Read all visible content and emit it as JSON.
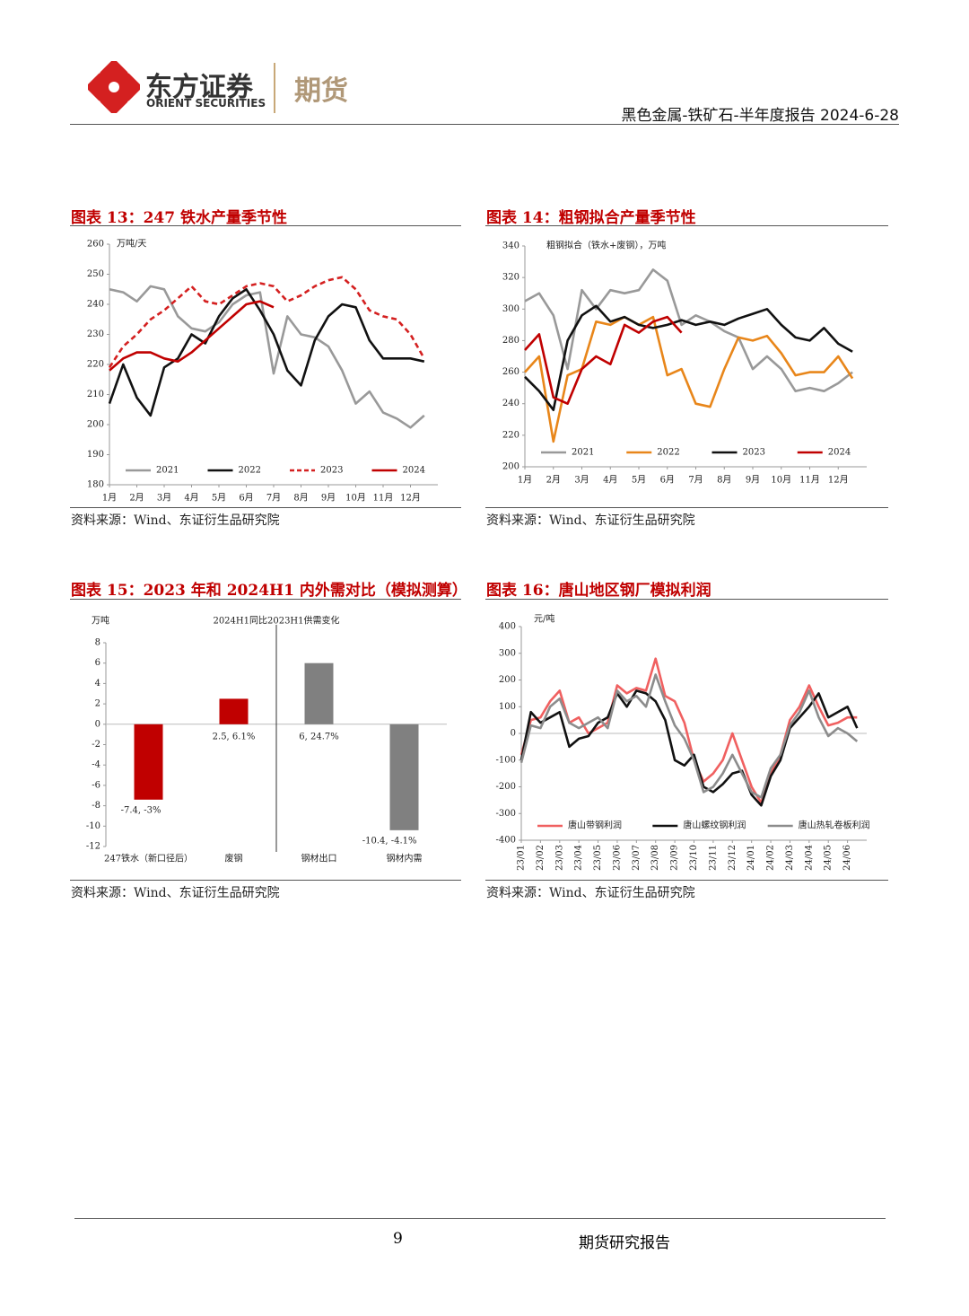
{
  "header": {
    "logo_cn": "东方证券",
    "logo_en": "ORIENT SECURITIES",
    "division": "期货",
    "report": "黑色金属-铁矿石-半年度报告 2024-6-28"
  },
  "footer": {
    "page": "9",
    "name": "期货研究报告"
  },
  "chart_data": [
    {
      "type": "line",
      "figure": "图表 13：247 铁水产量季节性",
      "source": "资料来源：Wind、东证衍生品研究院",
      "y_label": "万吨/天",
      "categories": [
        "1月",
        null,
        "2月",
        null,
        "3月",
        null,
        "4月",
        null,
        "5月",
        null,
        "6月",
        null,
        "7月",
        null,
        "8月",
        null,
        "9月",
        null,
        "10月",
        null,
        "11月",
        null,
        "12月",
        null
      ],
      "ylim": [
        180,
        260
      ],
      "yticks": [
        180,
        190,
        200,
        210,
        220,
        230,
        240,
        250,
        260
      ],
      "legend": "bottom",
      "series": [
        {
          "name": "2021",
          "color": "#999999",
          "values": [
            245,
            244,
            241,
            246,
            245,
            236,
            232,
            231,
            234,
            240,
            243,
            244,
            217,
            236,
            230,
            229,
            226,
            218,
            207,
            211,
            204,
            202,
            199,
            203
          ]
        },
        {
          "name": "2022",
          "color": "#111111",
          "values": [
            207,
            220,
            209,
            203,
            219,
            222,
            230,
            227,
            236,
            242,
            245,
            238,
            230,
            218,
            213,
            228,
            236,
            240,
            239,
            228,
            222,
            222,
            222,
            221
          ]
        },
        {
          "name": "2023",
          "color": "#d42020",
          "dash": true,
          "values": [
            219,
            226,
            230,
            235,
            238,
            242,
            246,
            241,
            240,
            243,
            246,
            247,
            246,
            241,
            243,
            246,
            248,
            249,
            245,
            238,
            236,
            235,
            230,
            222
          ]
        },
        {
          "name": "2024",
          "color": "#c00000",
          "values": [
            218,
            222,
            224,
            224,
            222,
            221,
            224,
            228,
            232,
            236,
            240,
            241,
            239,
            null,
            null,
            null,
            null,
            null,
            null,
            null,
            null,
            null,
            null,
            null
          ]
        }
      ]
    },
    {
      "type": "line",
      "figure": "图表 14：粗钢拟合产量季节性",
      "source": "资料来源：Wind、东证衍生品研究院",
      "y_label": "粗钢拟合（铁水+废钢），万吨",
      "categories": [
        "1月",
        null,
        "2月",
        null,
        "3月",
        null,
        "4月",
        null,
        "5月",
        null,
        "6月",
        null,
        "7月",
        null,
        "8月",
        null,
        "9月",
        null,
        "10月",
        null,
        "11月",
        null,
        "12月",
        null
      ],
      "ylim": [
        200,
        340
      ],
      "yticks": [
        200,
        220,
        240,
        260,
        280,
        300,
        320,
        340
      ],
      "legend": "bottom",
      "series": [
        {
          "name": "2021",
          "color": "#999999",
          "values": [
            305,
            310,
            296,
            262,
            312,
            300,
            312,
            310,
            312,
            325,
            318,
            290,
            296,
            292,
            286,
            282,
            262,
            270,
            262,
            248,
            250,
            248,
            253,
            260
          ]
        },
        {
          "name": "2022",
          "color": "#e8861a",
          "values": [
            260,
            270,
            216,
            258,
            262,
            292,
            290,
            295,
            290,
            295,
            258,
            262,
            240,
            238,
            262,
            282,
            280,
            283,
            272,
            258,
            260,
            260,
            270,
            256
          ]
        },
        {
          "name": "2023",
          "color": "#111111",
          "values": [
            257,
            248,
            236,
            280,
            296,
            302,
            292,
            295,
            290,
            288,
            290,
            293,
            290,
            292,
            290,
            294,
            297,
            300,
            290,
            282,
            280,
            288,
            278,
            273
          ]
        },
        {
          "name": "2024",
          "color": "#c00000",
          "values": [
            274,
            284,
            244,
            240,
            262,
            270,
            265,
            290,
            285,
            292,
            295,
            285,
            null,
            null,
            null,
            null,
            null,
            null,
            null,
            null,
            null,
            null,
            null,
            null
          ]
        }
      ]
    },
    {
      "type": "bar",
      "figure": "图表 15：2023 年和 2024H1 内外需对比（模拟测算）",
      "source": "资料来源：Wind、东证衍生品研究院",
      "title": "2024H1同比2023H1供需变化",
      "y_label": "万吨",
      "categories": [
        "247铁水（新口径后）",
        "废钢",
        "钢材出口",
        "钢材内需"
      ],
      "values": [
        -7.4,
        2.5,
        6,
        -10.4
      ],
      "value_labels": [
        "-7.4, -3%",
        "2.5, 6.1%",
        "6, 24.7%",
        "-10.4, -4.1%"
      ],
      "colors": [
        "#c00000",
        "#c00000",
        "#808080",
        "#808080"
      ],
      "ylim": [
        -12,
        8
      ],
      "yticks": [
        -12,
        -10,
        -8,
        -6,
        -4,
        -2,
        0,
        2,
        4,
        6,
        8
      ]
    },
    {
      "type": "line",
      "figure": "图表 16：唐山地区钢厂模拟利润",
      "source": "资料来源：Wind、东证衍生品研究院",
      "y_label": "元/吨",
      "categories": [
        "23/01",
        null,
        "23/02",
        null,
        "23/03",
        null,
        "23/04",
        null,
        "23/05",
        null,
        "23/06",
        null,
        "23/07",
        null,
        "23/08",
        null,
        "23/09",
        null,
        "23/10",
        null,
        "23/11",
        null,
        "23/12",
        null,
        "24/01",
        null,
        "24/02",
        null,
        "24/03",
        null,
        "24/04",
        null,
        "24/05",
        null,
        "24/06",
        null
      ],
      "ylim": [
        -400,
        400
      ],
      "yticks": [
        -400,
        -300,
        -200,
        -100,
        0,
        100,
        200,
        300,
        400
      ],
      "legend": "bottom",
      "zero_line": true,
      "series": [
        {
          "name": "唐山带钢利润",
          "color": "#f06060",
          "values": [
            -80,
            50,
            60,
            120,
            160,
            40,
            60,
            0,
            20,
            40,
            180,
            150,
            170,
            160,
            280,
            140,
            120,
            40,
            -100,
            -180,
            -150,
            -100,
            0,
            -100,
            -200,
            -260,
            -150,
            -80,
            50,
            100,
            180,
            100,
            30,
            40,
            60,
            60
          ]
        },
        {
          "name": "唐山螺纹钢利润",
          "color": "#111111",
          "values": [
            -100,
            80,
            40,
            60,
            80,
            -50,
            -20,
            -10,
            40,
            60,
            150,
            100,
            160,
            150,
            120,
            50,
            -100,
            -120,
            -80,
            -200,
            -220,
            -190,
            -150,
            -140,
            -230,
            -270,
            -160,
            -100,
            20,
            60,
            100,
            150,
            60,
            80,
            100,
            20
          ]
        },
        {
          "name": "唐山热轧卷板利润",
          "color": "#8c8c8c",
          "values": [
            -110,
            30,
            20,
            100,
            130,
            40,
            20,
            40,
            60,
            20,
            160,
            120,
            140,
            100,
            220,
            120,
            30,
            -20,
            -100,
            -220,
            -200,
            -150,
            -80,
            -150,
            -220,
            -240,
            -130,
            -80,
            30,
            80,
            160,
            60,
            -10,
            20,
            0,
            -30
          ]
        }
      ]
    }
  ]
}
